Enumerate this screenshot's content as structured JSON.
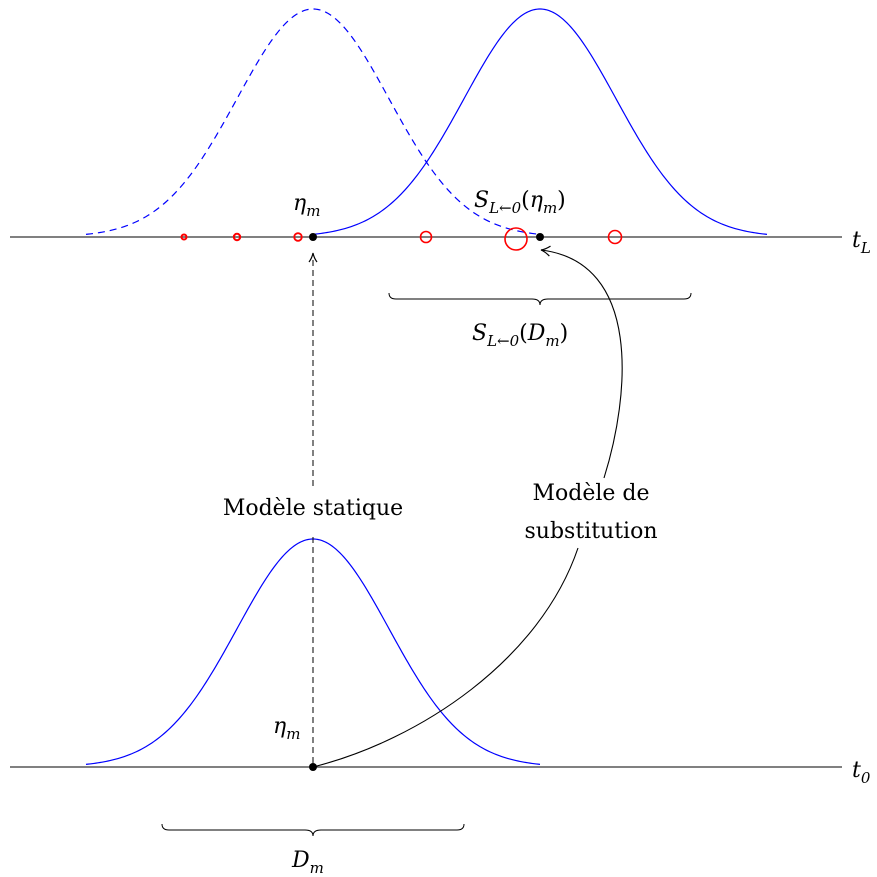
{
  "axes": {
    "top": {
      "label_main": "t",
      "label_sub": "L"
    },
    "bottom": {
      "label_main": "t",
      "label_sub": "0"
    }
  },
  "top_point": {
    "main": "η",
    "sub": "m"
  },
  "mapped_point": {
    "prefix": "S",
    "sub": "L←0",
    "arg_main": "η",
    "arg_sub": "m"
  },
  "top_brace": {
    "prefix": "S",
    "sub": "L←0",
    "arg_main": "D",
    "arg_sub": "m"
  },
  "bottom_point": {
    "main": "η",
    "sub": "m"
  },
  "bottom_brace": {
    "main": "D",
    "sub": "m"
  },
  "static_model": {
    "label": "Modèle statique"
  },
  "substitution_model": {
    "line1": "Modèle de",
    "line2": "substitution"
  },
  "colors": {
    "curve": "#0000ff",
    "samples": "#ff0000",
    "line": "#000000"
  }
}
